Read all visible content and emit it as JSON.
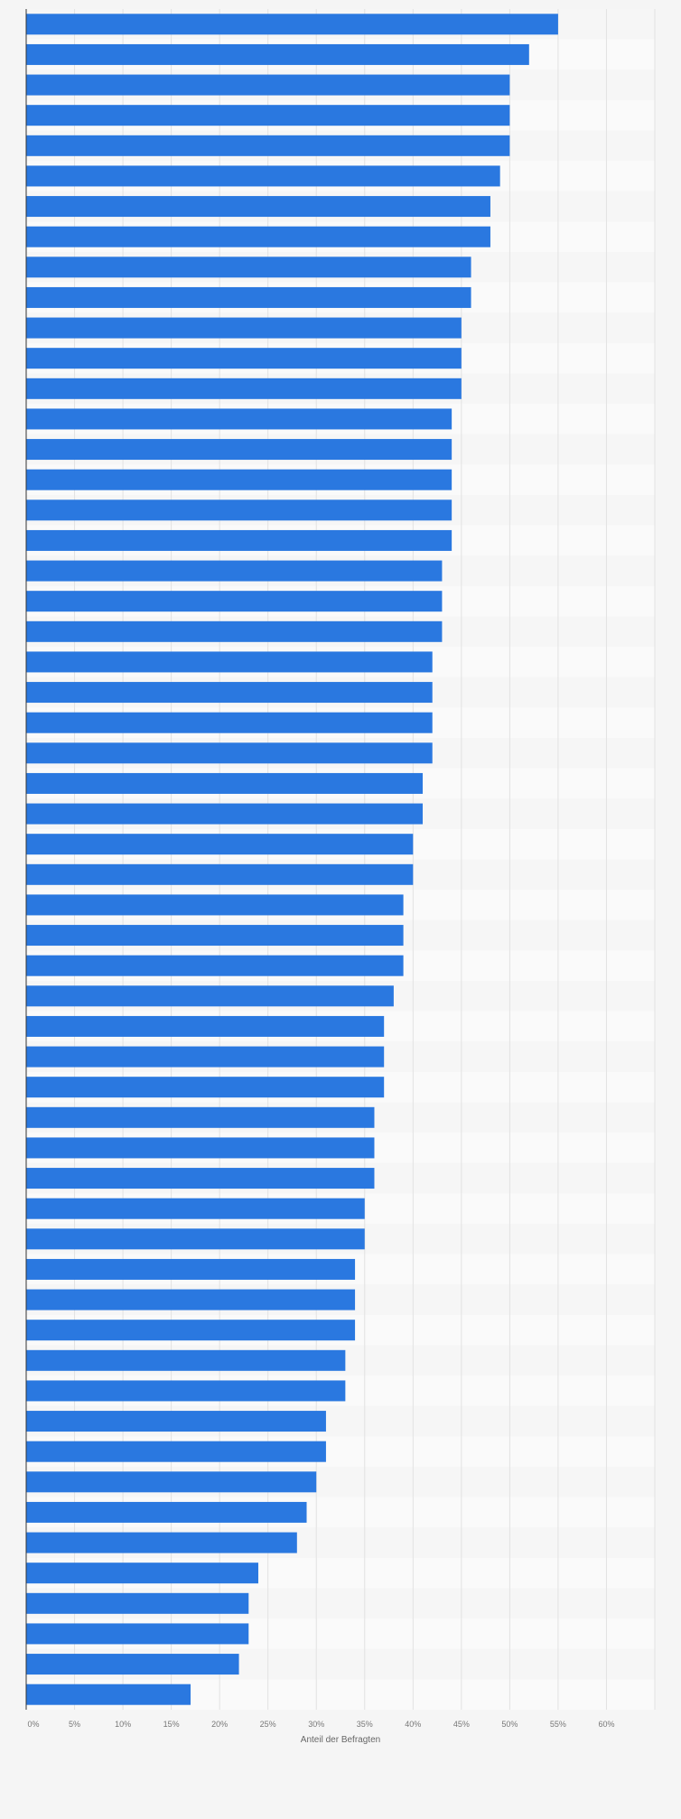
{
  "chart_data": {
    "type": "bar",
    "orientation": "horizontal",
    "title": "",
    "xlabel": "Anteil der Befragten",
    "ylabel": "",
    "xlim": [
      0,
      65
    ],
    "x_ticks": [
      "0%",
      "5%",
      "10%",
      "15%",
      "20%",
      "25%",
      "30%",
      "35%",
      "40%",
      "45%",
      "50%",
      "55%",
      "60%"
    ],
    "grid": true,
    "legend": "none",
    "bar_color": "#2a78e0",
    "values": [
      55,
      52,
      50,
      50,
      50,
      49,
      48,
      48,
      46,
      46,
      45,
      45,
      45,
      44,
      44,
      44,
      44,
      44,
      43,
      43,
      43,
      42,
      42,
      42,
      42,
      41,
      41,
      40,
      40,
      39,
      39,
      39,
      38,
      37,
      37,
      37,
      36,
      36,
      36,
      35,
      35,
      34,
      34,
      34,
      33,
      33,
      31,
      31,
      30,
      29,
      28,
      24,
      23,
      23,
      22,
      17
    ]
  }
}
